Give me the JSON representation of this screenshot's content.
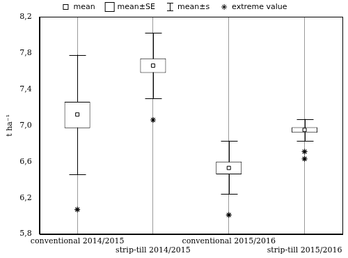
{
  "chart_data": {
    "type": "box",
    "y_label": "t ha⁻¹",
    "categories": [
      "conventional 2014/2015",
      "strip-till 2014/2015",
      "conventional 2015/2016",
      "strip-till 2015/2016"
    ],
    "series": [
      {
        "name": "mean",
        "type": "scatter",
        "marker": "square",
        "color": "#000000",
        "values": [
          7.12,
          7.66,
          6.53,
          6.95
        ]
      },
      {
        "name": "mean±SE",
        "type": "box",
        "color": "#000000",
        "values": [
          [
            6.97,
            7.26
          ],
          [
            7.58,
            7.74
          ],
          [
            6.46,
            6.6
          ],
          [
            6.92,
            6.98
          ]
        ]
      },
      {
        "name": "mean±s",
        "type": "whisker",
        "color": "#000000",
        "values": [
          [
            6.46,
            7.78
          ],
          [
            7.3,
            8.02
          ],
          [
            6.24,
            6.83
          ],
          [
            6.83,
            7.07
          ]
        ]
      },
      {
        "name": "extreme value",
        "type": "scatter",
        "marker": "star",
        "color": "#000000",
        "values": [
          [
            6.07
          ],
          [
            7.06
          ],
          [
            6.01
          ],
          [
            6.71,
            6.63
          ]
        ]
      }
    ],
    "ylim": [
      5.8,
      8.2
    ],
    "yticks": [
      {
        "value": 5.8,
        "label": "5,8"
      },
      {
        "value": 6.2,
        "label": "6,2"
      },
      {
        "value": 6.6,
        "label": "6,6"
      },
      {
        "value": 7.0,
        "label": "7,0"
      },
      {
        "value": 7.4,
        "label": "7,4"
      },
      {
        "value": 7.8,
        "label": "7,8"
      },
      {
        "value": 8.2,
        "label": "8,2"
      }
    ],
    "grid": true
  }
}
